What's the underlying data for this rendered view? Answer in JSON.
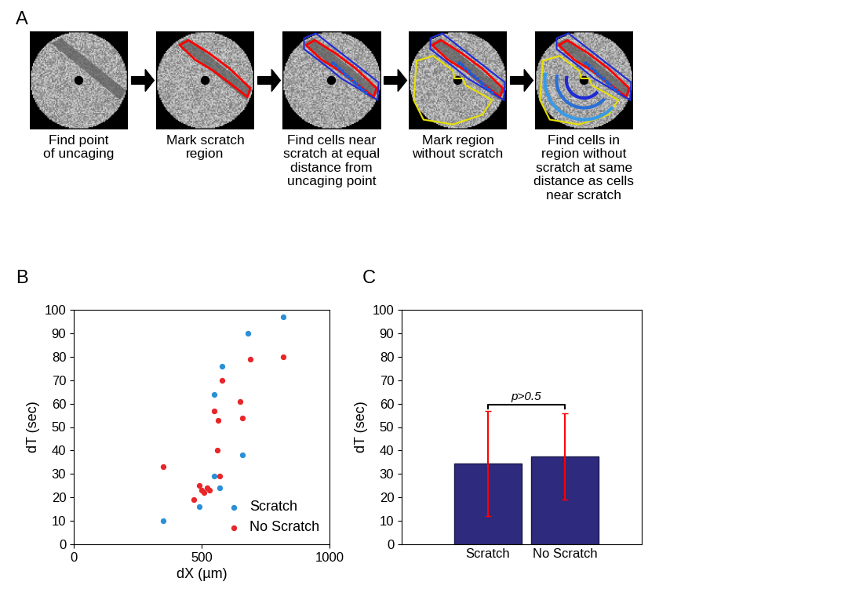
{
  "panel_labels": [
    "A",
    "B",
    "C"
  ],
  "workflow": {
    "steps": [
      "Find point\nof uncaging",
      "Mark scratch\nregion",
      "Find cells near\nscratch at equal\ndistance from\nuncaging point",
      "Mark region\nwithout scratch",
      "Find cells in\nregion without\nscratch at same\ndistance as cells\nnear scratch"
    ]
  },
  "chart_data": [
    {
      "type": "scatter",
      "x_label": "dX (µm)",
      "y_label": "dT (sec)",
      "xlim": [
        0,
        1000
      ],
      "xticks": [
        0,
        500,
        1000
      ],
      "ylim": [
        0,
        100
      ],
      "yticks": [
        0,
        10,
        20,
        30,
        40,
        50,
        60,
        70,
        80,
        90,
        100
      ],
      "legend": "lower right",
      "series": [
        {
          "name": "Scratch",
          "color": "#2b8fd6",
          "marker": "o",
          "x": [
            350,
            490,
            550,
            570,
            580,
            550,
            660,
            680,
            820
          ],
          "values": [
            10,
            16,
            29,
            24,
            76,
            64,
            38,
            90,
            97
          ]
        },
        {
          "name": "No Scratch",
          "color": "#e8262a",
          "marker": "o",
          "x": [
            350,
            470,
            490,
            500,
            510,
            520,
            530,
            570,
            560,
            550,
            565,
            580,
            650,
            660,
            690,
            820
          ],
          "values": [
            33,
            19,
            25,
            23,
            22,
            24,
            23,
            29,
            40,
            57,
            53,
            70,
            61,
            54,
            79,
            80
          ]
        }
      ]
    },
    {
      "type": "bar",
      "y_label": "dT (sec)",
      "categories": [
        "Scratch",
        "No Scratch"
      ],
      "values": [
        34.5,
        37.5
      ],
      "errors": [
        22.5,
        18.5
      ],
      "color": "#2e2a7e",
      "ylim": [
        0,
        100
      ],
      "yticks": [
        0,
        10,
        20,
        30,
        40,
        50,
        60,
        70,
        80,
        90,
        100
      ],
      "annotation": "p>0.5"
    }
  ]
}
